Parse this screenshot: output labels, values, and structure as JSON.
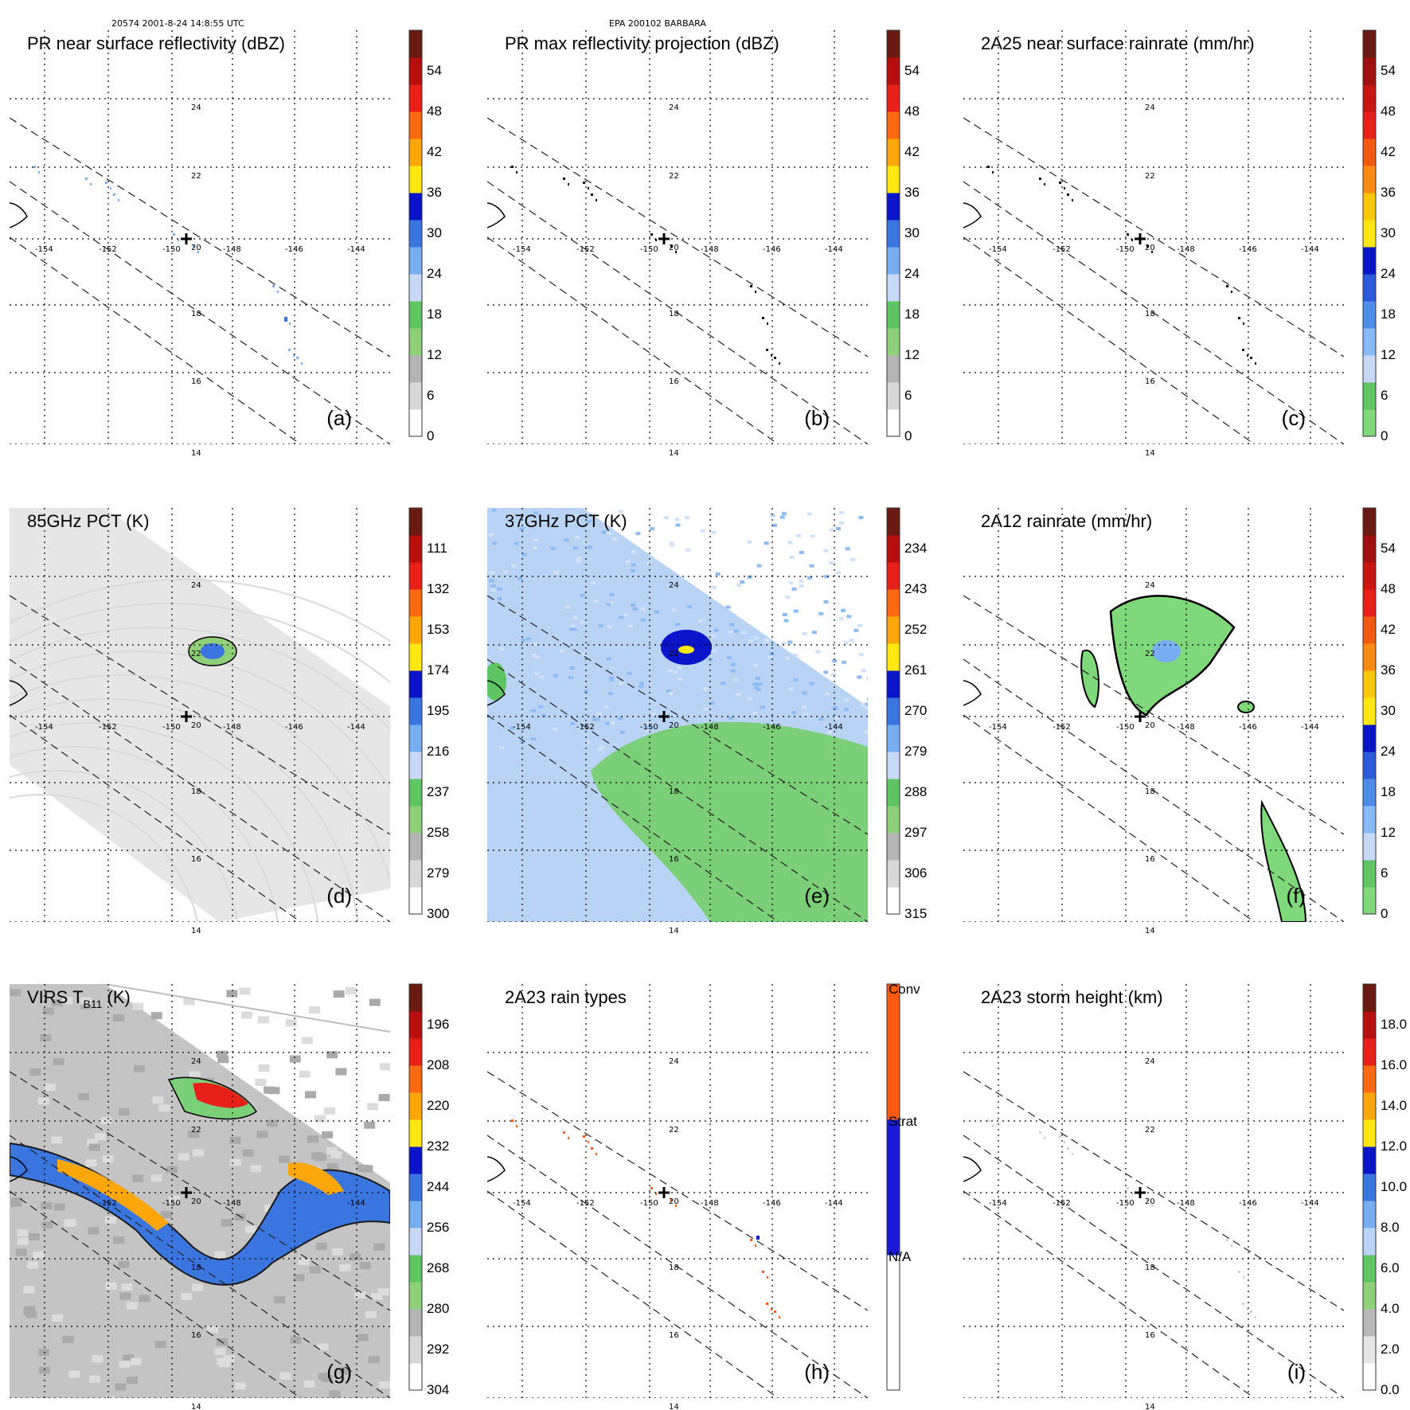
{
  "header": {
    "left": "20574 2001-8-24 14:8:55 UTC",
    "center": "EPA 200102 BARBARA"
  },
  "chart_data": [
    {
      "type": "heatmap",
      "panel": "a",
      "title": "PR near surface reflectivity (dBZ)",
      "label": "(a)",
      "colorbar": {
        "ticks": [
          "54",
          "48",
          "42",
          "36",
          "30",
          "24",
          "18",
          "12",
          "6",
          "0"
        ]
      },
      "field": "sparse",
      "lon_labels": [
        "-154",
        "-152",
        "-150",
        "-148",
        "-146",
        "-144"
      ],
      "lat_labels": [
        "24",
        "22",
        "20",
        "18",
        "16",
        "14"
      ],
      "center_marker": {
        "lon": -149.5,
        "lat": 20.0
      }
    },
    {
      "type": "heatmap",
      "panel": "b",
      "title": "PR max reflectivity projection (dBZ)",
      "label": "(b)",
      "colorbar": {
        "ticks": [
          "54",
          "48",
          "42",
          "36",
          "30",
          "24",
          "18",
          "12",
          "6",
          "0"
        ]
      },
      "field": "sparse",
      "lon_labels": [
        "-154",
        "-152",
        "-150",
        "-148",
        "-146",
        "-144"
      ],
      "lat_labels": [
        "24",
        "22",
        "20",
        "18",
        "16",
        "14"
      ],
      "center_marker": {
        "lon": -149.5,
        "lat": 20.0
      }
    },
    {
      "type": "heatmap",
      "panel": "c",
      "title": "2A25 near surface rainrate (mm/hr)",
      "label": "(c)",
      "colorbar": {
        "ticks": [
          "54",
          "48",
          "42",
          "36",
          "30",
          "24",
          "18",
          "12",
          "6",
          "0"
        ]
      },
      "field": "sparse",
      "lon_labels": [
        "-154",
        "-152",
        "-150",
        "-148",
        "-146",
        "-144"
      ],
      "lat_labels": [
        "24",
        "22",
        "20",
        "18",
        "16",
        "14"
      ],
      "center_marker": {
        "lon": -149.5,
        "lat": 20.0
      }
    },
    {
      "type": "heatmap",
      "panel": "d",
      "title": "85GHz PCT (K)",
      "label": "(d)",
      "colorbar": {
        "ticks": [
          "111",
          "132",
          "153",
          "174",
          "195",
          "216",
          "237",
          "258",
          "279",
          "300"
        ]
      },
      "field": "swath-gray",
      "lon_labels": [
        "-154",
        "-152",
        "-150",
        "-148",
        "-146",
        "-144"
      ],
      "lat_labels": [
        "24",
        "22",
        "20",
        "18",
        "16",
        "14"
      ],
      "center_marker": {
        "lon": -149.5,
        "lat": 20.0
      }
    },
    {
      "type": "heatmap",
      "panel": "e",
      "title": "37GHz PCT (K)",
      "label": "(e)",
      "colorbar": {
        "ticks": [
          "234",
          "243",
          "252",
          "261",
          "270",
          "279",
          "288",
          "297",
          "306",
          "315"
        ]
      },
      "field": "swath-blue",
      "lon_labels": [
        "-154",
        "-152",
        "-150",
        "-148",
        "-146",
        "-144"
      ],
      "lat_labels": [
        "24",
        "22",
        "20",
        "18",
        "16",
        "14"
      ],
      "center_marker": {
        "lon": -149.5,
        "lat": 20.0
      }
    },
    {
      "type": "heatmap",
      "panel": "f",
      "title": "2A12 rainrate (mm/hr)",
      "label": "(f)",
      "colorbar": {
        "ticks": [
          "54",
          "48",
          "42",
          "36",
          "30",
          "24",
          "18",
          "12",
          "6",
          "0"
        ]
      },
      "field": "swath-rain",
      "lon_labels": [
        "-154",
        "-152",
        "-150",
        "-148",
        "-146",
        "-144"
      ],
      "lat_labels": [
        "24",
        "22",
        "20",
        "18",
        "16",
        "14"
      ],
      "center_marker": {
        "lon": -149.5,
        "lat": 20.0
      }
    },
    {
      "type": "heatmap",
      "panel": "g",
      "title": "VIRS T",
      "title_sub": "B11",
      "title_suffix": " (K)",
      "label": "(g)",
      "colorbar": {
        "ticks": [
          "196",
          "208",
          "220",
          "232",
          "244",
          "256",
          "268",
          "280",
          "292",
          "304"
        ]
      },
      "field": "swath-ir",
      "lon_labels": [
        "-152",
        "-150",
        "-148",
        "-144"
      ],
      "lat_labels": [
        "24",
        "22",
        "20",
        "18",
        "16",
        "14"
      ],
      "center_marker": {
        "lon": -149.5,
        "lat": 20.0
      }
    },
    {
      "type": "heatmap",
      "panel": "h",
      "title": "2A23 rain types",
      "label": "(h)",
      "colorbar": {
        "ticks": [
          "Conv",
          "Strat",
          "N/A"
        ]
      },
      "field": "sparse",
      "lon_labels": [
        "-154",
        "-152",
        "-150",
        "-148",
        "-146",
        "-144"
      ],
      "lat_labels": [
        "24",
        "22",
        "20",
        "18",
        "16",
        "14"
      ],
      "center_marker": {
        "lon": -149.5,
        "lat": 20.0
      }
    },
    {
      "type": "heatmap",
      "panel": "i",
      "title": "2A23 storm height (km)",
      "label": "(i)",
      "colorbar": {
        "ticks": [
          "18.0",
          "16.0",
          "14.0",
          "12.0",
          "10.0",
          "8.0",
          "6.0",
          "4.0",
          "2.0",
          "0.0"
        ]
      },
      "field": "sparse",
      "lon_labels": [
        "-154",
        "-152",
        "-150",
        "-148",
        "-146",
        "-144"
      ],
      "lat_labels": [
        "24",
        "22",
        "20",
        "18",
        "16",
        "14"
      ],
      "center_marker": {
        "lon": -149.5,
        "lat": 20.0
      }
    }
  ],
  "colors": {
    "grid": "#000000",
    "land": "#000000",
    "cb_refl": [
      "#ffffff",
      "#d8d8d8",
      "#b4b4b4",
      "#8fcf7a",
      "#5fc462",
      "#c7d9f7",
      "#77aef2",
      "#3a75e0",
      "#0a14c9",
      "#ffe812",
      "#fba70c",
      "#fb6a12",
      "#e8201a",
      "#b70f0f",
      "#6a1a10"
    ],
    "cb_rain": [
      "#7fd97a",
      "#5fc462",
      "#c7d9f7",
      "#88bbf5",
      "#4f8ce9",
      "#2c5bd9",
      "#0a14c9",
      "#ffe812",
      "#fbc70c",
      "#fb8a12",
      "#f25a12",
      "#e8201a",
      "#c9140f",
      "#9e1010",
      "#6a1a10"
    ],
    "cb_type": [
      "#ffffff",
      "#1a1ad8",
      "#ff5a12"
    ],
    "cb_ht": [
      "#ffffff",
      "#e6e6e6",
      "#b8b8b8",
      "#8fcf7a",
      "#5fc462",
      "#bcd4f5",
      "#77aef2",
      "#3a75e0",
      "#0a14c9",
      "#ffe812",
      "#fba70c",
      "#fb6a12",
      "#e8201a",
      "#b70f0f",
      "#6a1a10"
    ]
  }
}
